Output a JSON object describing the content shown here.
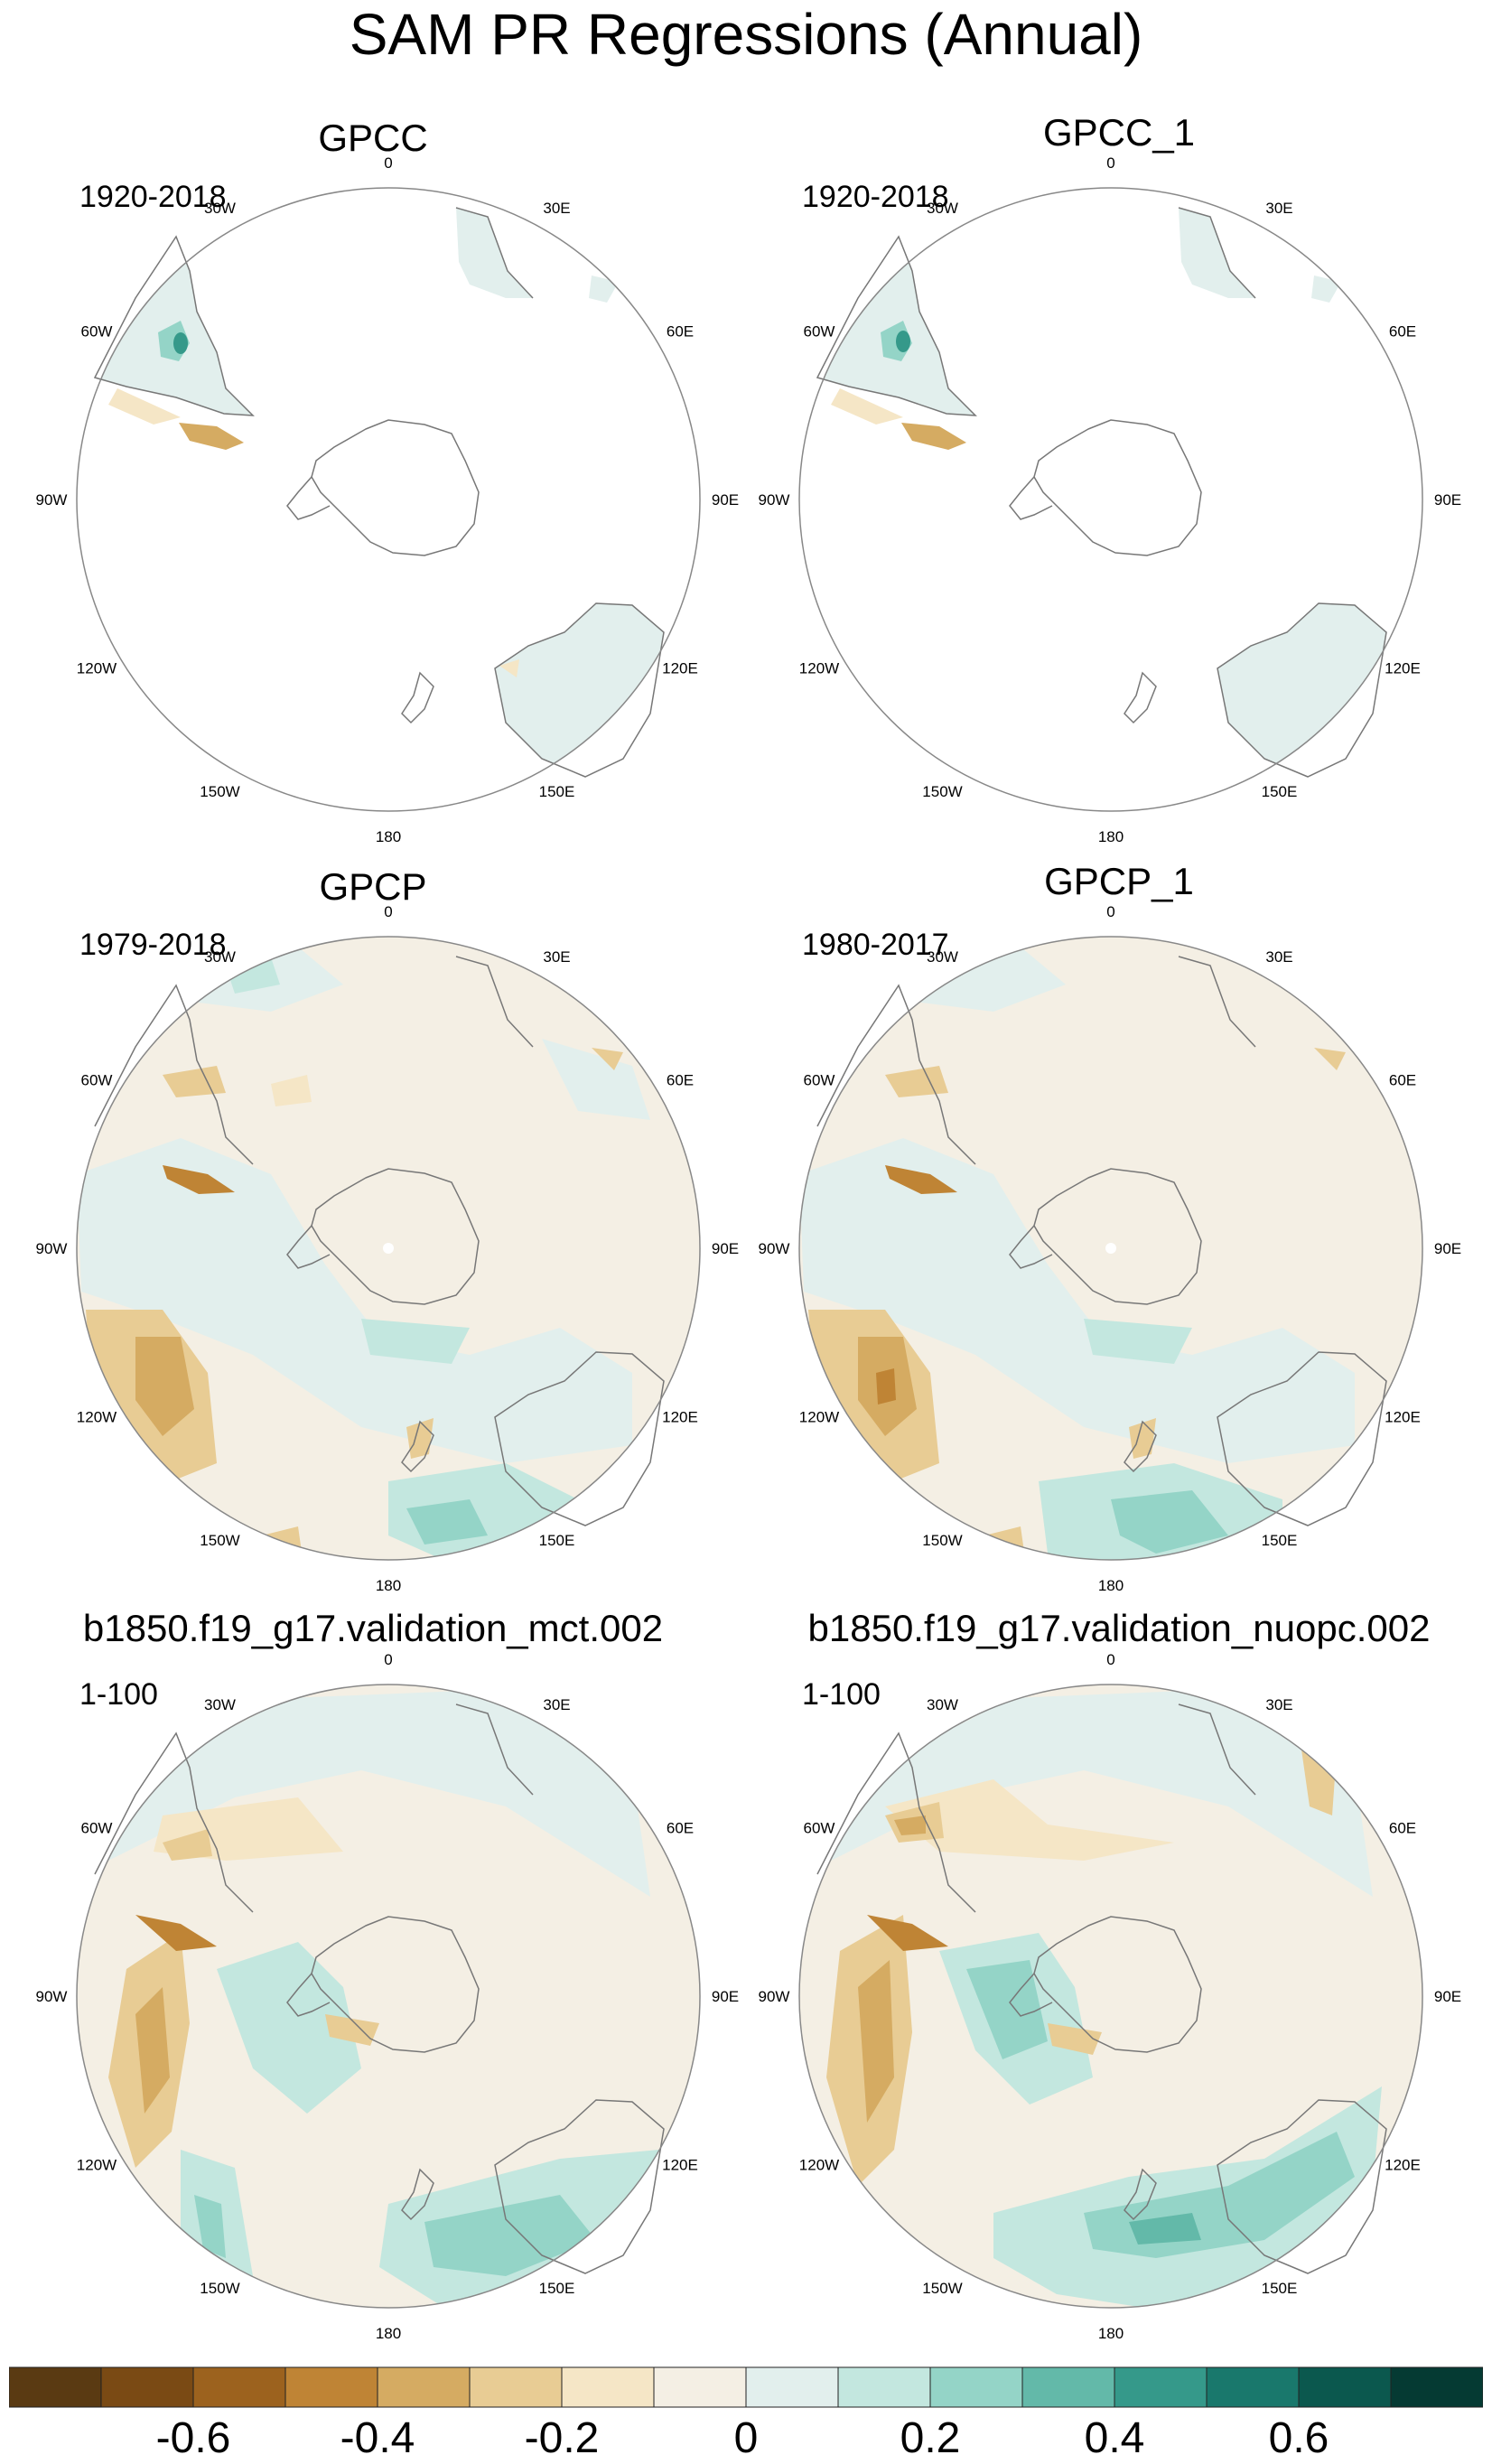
{
  "title": "SAM PR Regressions (Annual)",
  "panels": [
    {
      "name": "GPCC",
      "period": "1920-2018",
      "coverage": "land"
    },
    {
      "name": "GPCC_1",
      "period": "1920-2018",
      "coverage": "land"
    },
    {
      "name": "GPCP",
      "period": "1979-2018",
      "coverage": "full"
    },
    {
      "name": "GPCP_1",
      "period": "1980-2017",
      "coverage": "full"
    },
    {
      "name": "b1850.f19_g17.validation_mct.002",
      "period": "1-100",
      "coverage": "full"
    },
    {
      "name": "b1850.f19_g17.validation_nuopc.002",
      "period": "1-100",
      "coverage": "full"
    }
  ],
  "longitude_labels": [
    "0",
    "30E",
    "60E",
    "90E",
    "120E",
    "150E",
    "180",
    "150W",
    "120W",
    "90W",
    "60W",
    "30W"
  ],
  "colorbar": {
    "colors": [
      "#5a3a12",
      "#7a4a14",
      "#9c621e",
      "#bf8435",
      "#d5ab62",
      "#e8cc94",
      "#f5e6c6",
      "#f4efe4",
      "#e2efed",
      "#c3e7df",
      "#94d4c7",
      "#63b9a9",
      "#35998a",
      "#19786c",
      "#0b584e",
      "#053a33"
    ],
    "labels": [
      "-0.6",
      "-0.4",
      "-0.2",
      "0",
      "0.2",
      "0.4",
      "0.6"
    ]
  }
}
